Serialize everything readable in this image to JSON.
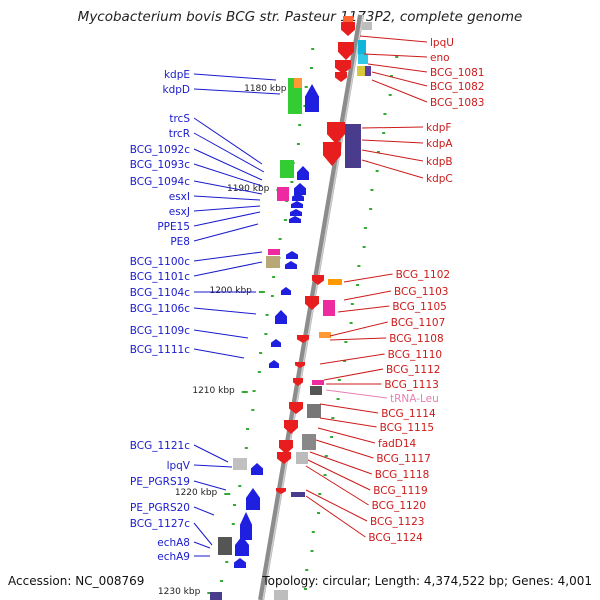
{
  "title": "Mycobacterium bovis BCG str. Pasteur 1173P2, complete genome",
  "accession": "Accession: NC_008769",
  "summary": "Topology: circular; Length: 4,374,522 bp; Genes: 4,001",
  "colors": {
    "left_label": "#1a1acc",
    "right_label": "#cc1a1a",
    "trna_label": "#e680b3",
    "forward_gene": "#1f1fe0",
    "reverse_gene": "#e81e1e",
    "backbone": "#8c8c8c",
    "tick": "#33aa33"
  },
  "kbp_labels": [
    "1180 kbp",
    "1190 kbp",
    "1200 kbp",
    "1210 kbp",
    "1220 kbp",
    "1230 kbp"
  ],
  "left_labels": [
    "kdpE",
    "kdpD",
    "trcS",
    "trcR",
    "BCG_1092c",
    "BCG_1093c",
    "BCG_1094c",
    "esxI",
    "esxJ",
    "PPE15",
    "PE8",
    "BCG_1100c",
    "BCG_1101c",
    "BCG_1104c",
    "BCG_1106c",
    "BCG_1109c",
    "BCG_1111c",
    "BCG_1121c",
    "lpqV",
    "PE_PGRS19",
    "PE_PGRS20",
    "BCG_1127c",
    "echA8",
    "echA9"
  ],
  "right_labels": [
    "lpqU",
    "eno",
    "BCG_1081",
    "BCG_1082",
    "BCG_1083",
    "kdpF",
    "kdpA",
    "kdpB",
    "kdpC",
    "BCG_1102",
    "BCG_1103",
    "BCG_1105",
    "BCG_1107",
    "BCG_1108",
    "BCG_1110",
    "BCG_1112",
    "BCG_1113",
    "tRNA-Leu",
    "BCG_1114",
    "BCG_1115",
    "fadD14",
    "BCG_1117",
    "BCG_1118",
    "BCG_1119",
    "BCG_1120",
    "BCG_1123",
    "BCG_1124"
  ]
}
